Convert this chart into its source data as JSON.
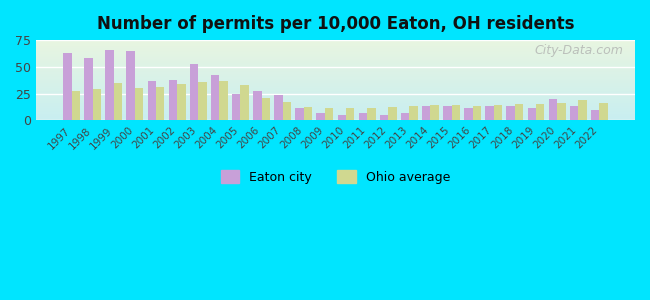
{
  "title": "Number of permits per 10,000 Eaton, OH residents",
  "years": [
    1997,
    1998,
    1999,
    2000,
    2001,
    2002,
    2003,
    2004,
    2005,
    2006,
    2007,
    2008,
    2009,
    2010,
    2011,
    2012,
    2013,
    2014,
    2015,
    2016,
    2017,
    2018,
    2019,
    2020,
    2021,
    2022
  ],
  "eaton_values": [
    63,
    58,
    66,
    65,
    37,
    38,
    53,
    42,
    25,
    27,
    24,
    11,
    7,
    5,
    7,
    5,
    7,
    13,
    13,
    11,
    13,
    13,
    11,
    20,
    13,
    10
  ],
  "ohio_values": [
    27,
    29,
    35,
    30,
    31,
    34,
    36,
    37,
    33,
    21,
    17,
    12,
    11,
    11,
    11,
    12,
    13,
    14,
    14,
    13,
    14,
    15,
    15,
    16,
    19,
    16
  ],
  "eaton_color": "#c8a0d8",
  "ohio_color": "#d0d890",
  "bg_outer": "#00e5ff",
  "bg_plot_top": "#e8f5e0",
  "bg_plot_bottom": "#c8eef0",
  "ylim": [
    0,
    75
  ],
  "yticks": [
    0,
    25,
    50,
    75
  ],
  "bar_width": 0.4,
  "watermark": "City-Data.com",
  "eaton_label": "Eaton city",
  "ohio_label": "Ohio average"
}
